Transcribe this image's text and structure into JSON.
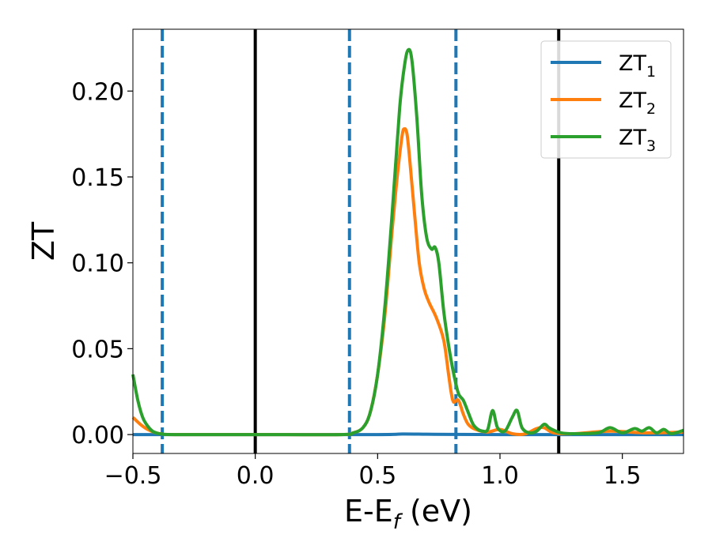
{
  "chart_data": {
    "type": "line",
    "xlabel": {
      "main": "E-E",
      "sub": "f",
      "suffix": " (eV)"
    },
    "ylabel": "ZT",
    "xlim": [
      -0.5,
      1.75
    ],
    "ylim": [
      -0.011,
      0.236
    ],
    "xticks": [
      -0.5,
      0.0,
      0.5,
      1.0,
      1.5
    ],
    "xtick_labels": [
      "−0.5",
      "0.0",
      "0.5",
      "1.0",
      "1.5"
    ],
    "yticks": [
      0.0,
      0.05,
      0.1,
      0.15,
      0.2
    ],
    "ytick_labels": [
      "0.00",
      "0.05",
      "0.10",
      "0.15",
      "0.20"
    ],
    "grid": false,
    "legend_position": "top-right",
    "vlines": [
      {
        "x": -0.38,
        "style": "dashed",
        "color": "#1f77b4"
      },
      {
        "x": 0.0,
        "style": "solid",
        "color": "#000000"
      },
      {
        "x": 0.385,
        "style": "dashed",
        "color": "#1f77b4"
      },
      {
        "x": 0.82,
        "style": "dashed",
        "color": "#1f77b4"
      },
      {
        "x": 1.24,
        "style": "solid",
        "color": "#000000"
      }
    ],
    "series": [
      {
        "name": "ZT",
        "sub": "1",
        "color": "#1f77b4",
        "x": [
          -0.5,
          0.0,
          0.5,
          0.6,
          0.7,
          0.8,
          1.0,
          1.5,
          1.75
        ],
        "y": [
          0.0,
          0.0,
          0.0,
          0.0003,
          0.0002,
          0.0001,
          0.0,
          0.0,
          0.0
        ]
      },
      {
        "name": "ZT",
        "sub": "2",
        "color": "#ff7f0e",
        "x": [
          -0.5,
          -0.47,
          -0.44,
          -0.41,
          -0.38,
          -0.33,
          0.0,
          0.35,
          0.4,
          0.44,
          0.47,
          0.5,
          0.53,
          0.56,
          0.58,
          0.6,
          0.61,
          0.62,
          0.63,
          0.65,
          0.67,
          0.69,
          0.71,
          0.74,
          0.77,
          0.79,
          0.8,
          0.81,
          0.83,
          0.85,
          0.87,
          0.9,
          0.95,
          1.0,
          1.05,
          1.1,
          1.15,
          1.18,
          1.22,
          1.3,
          1.45,
          1.6,
          1.75
        ],
        "y": [
          0.01,
          0.006,
          0.003,
          0.0012,
          0.0004,
          0.0,
          0.0,
          0.0,
          0.001,
          0.004,
          0.013,
          0.035,
          0.07,
          0.12,
          0.15,
          0.174,
          0.178,
          0.175,
          0.162,
          0.13,
          0.1,
          0.085,
          0.077,
          0.068,
          0.055,
          0.035,
          0.025,
          0.019,
          0.02,
          0.012,
          0.006,
          0.003,
          0.0015,
          0.003,
          0.0005,
          0.0003,
          0.0035,
          0.004,
          0.001,
          0.0005,
          0.002,
          0.001,
          0.0015
        ]
      },
      {
        "name": "ZT",
        "sub": "3",
        "color": "#2ca02c",
        "x": [
          -0.5,
          -0.48,
          -0.46,
          -0.44,
          -0.42,
          -0.4,
          -0.38,
          -0.33,
          0.0,
          0.35,
          0.4,
          0.44,
          0.47,
          0.5,
          0.53,
          0.56,
          0.59,
          0.61,
          0.625,
          0.64,
          0.66,
          0.68,
          0.7,
          0.72,
          0.735,
          0.75,
          0.77,
          0.79,
          0.81,
          0.83,
          0.85,
          0.87,
          0.89,
          0.91,
          0.93,
          0.95,
          0.97,
          0.99,
          1.02,
          1.05,
          1.07,
          1.09,
          1.12,
          1.15,
          1.18,
          1.2,
          1.22,
          1.25,
          1.3,
          1.4,
          1.45,
          1.5,
          1.55,
          1.58,
          1.61,
          1.64,
          1.67,
          1.7,
          1.75
        ],
        "y": [
          0.035,
          0.02,
          0.01,
          0.005,
          0.002,
          0.0008,
          0.0003,
          0.0,
          0.0,
          0.0,
          0.001,
          0.004,
          0.013,
          0.035,
          0.075,
          0.13,
          0.19,
          0.215,
          0.224,
          0.218,
          0.185,
          0.14,
          0.115,
          0.108,
          0.109,
          0.1,
          0.072,
          0.052,
          0.036,
          0.024,
          0.02,
          0.013,
          0.006,
          0.003,
          0.002,
          0.003,
          0.014,
          0.004,
          0.002,
          0.01,
          0.014,
          0.004,
          0.001,
          0.002,
          0.006,
          0.004,
          0.0025,
          0.001,
          0.0005,
          0.001,
          0.004,
          0.001,
          0.0035,
          0.002,
          0.004,
          0.001,
          0.003,
          0.0005,
          0.0025
        ]
      }
    ]
  }
}
